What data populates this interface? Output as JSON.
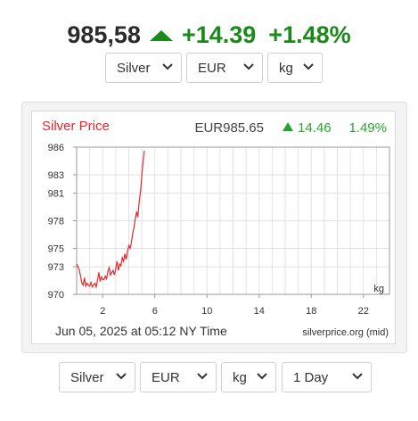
{
  "quote": {
    "price": "985,58",
    "change": "+14.39",
    "change_pct": "+1.48%",
    "direction": "up",
    "up_color": "#1a8a1a"
  },
  "top_controls": {
    "metal": "Silver",
    "currency": "EUR",
    "unit": "kg"
  },
  "chart_header": {
    "title": "Silver Price",
    "price": "EUR985.65",
    "change": "14.46",
    "change_pct": "1.49%",
    "title_color": "#e8262b",
    "change_color": "#2aa52a"
  },
  "chart_data": {
    "type": "line",
    "title": "Silver Price",
    "unit_label": "kg",
    "ylim": [
      970,
      986
    ],
    "yticks": [
      986,
      983,
      981,
      978,
      975,
      973,
      970
    ],
    "xlim": [
      0,
      24
    ],
    "xticks": [
      2,
      6,
      10,
      14,
      18,
      22
    ],
    "grid": true,
    "line_color": "#e8262b",
    "series": [
      {
        "x": [
          0.0,
          0.1,
          0.2,
          0.3,
          0.4,
          0.5,
          0.6,
          0.7,
          0.8,
          0.9,
          1.0,
          1.1,
          1.2,
          1.3,
          1.4,
          1.5,
          1.6,
          1.7,
          1.8,
          1.9,
          2.0,
          2.1,
          2.2,
          2.3,
          2.4,
          2.5,
          2.6,
          2.7,
          2.8,
          2.9,
          3.0,
          3.1,
          3.2,
          3.3,
          3.4,
          3.5,
          3.6,
          3.7,
          3.8,
          3.9,
          4.0,
          4.1,
          4.2,
          4.3,
          4.4,
          4.5,
          4.6,
          4.7,
          4.8,
          4.9,
          5.0,
          5.1,
          5.2
        ],
        "values": [
          973.3,
          973.0,
          972.7,
          972.0,
          971.2,
          971.0,
          971.8,
          970.9,
          971.2,
          971.0,
          970.9,
          971.3,
          970.8,
          971.0,
          971.2,
          970.8,
          971.5,
          972.4,
          971.4,
          971.9,
          971.6,
          971.6,
          972.0,
          971.7,
          972.5,
          972.9,
          972.1,
          972.4,
          972.6,
          972.1,
          972.8,
          973.6,
          972.6,
          973.3,
          973.1,
          974.0,
          973.6,
          974.4,
          973.8,
          974.6,
          975.3,
          975.0,
          975.6,
          976.6,
          977.3,
          978.2,
          979.0,
          978.4,
          980.1,
          981.2,
          982.9,
          984.6,
          985.6
        ]
      }
    ]
  },
  "chart_footer": {
    "timestamp": "Jun 05, 2025 at 05:12 NY Time",
    "source": "silverprice.org (mid)"
  },
  "bottom_controls": {
    "metal": "Silver",
    "currency": "EUR",
    "unit": "kg",
    "period": "1 Day"
  }
}
